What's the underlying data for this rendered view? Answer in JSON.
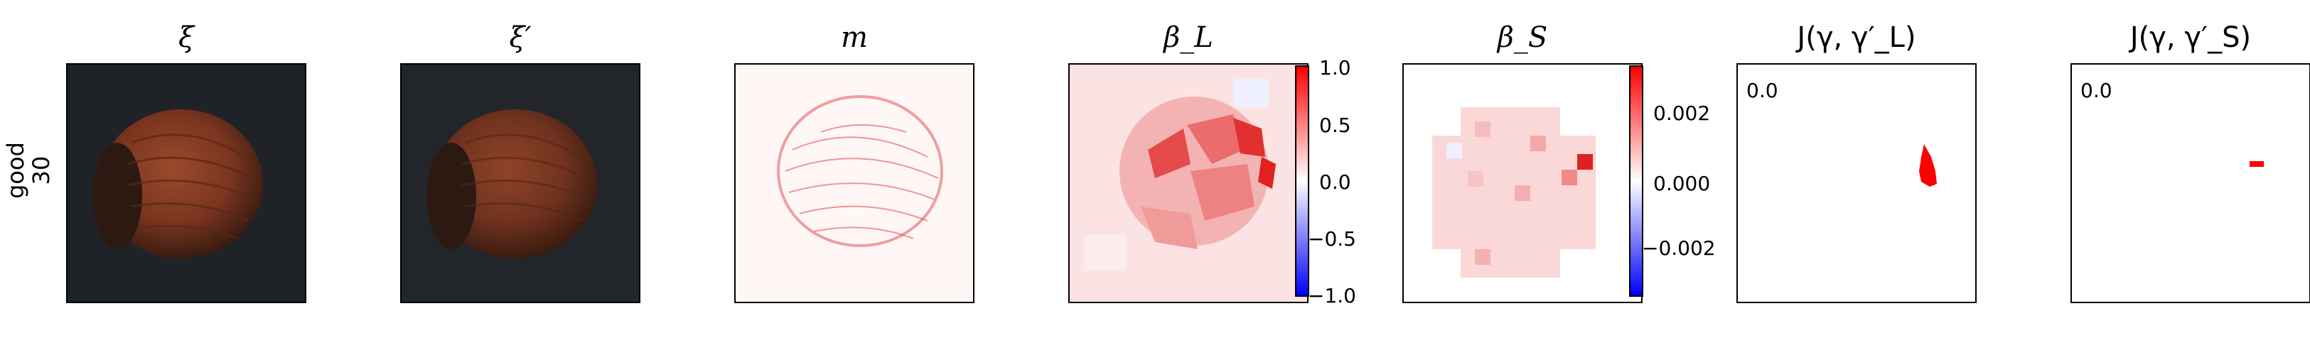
{
  "row": {
    "label_line1": "good",
    "label_line2": "30"
  },
  "panels": [
    {
      "title": "ξ"
    },
    {
      "title": "ξ′"
    },
    {
      "title": "m"
    },
    {
      "title": "β_L",
      "colorbar": {
        "ticks": [
          "1.0",
          "0.5",
          "0.0",
          "−0.5",
          "−1.0"
        ]
      }
    },
    {
      "title": "β_S",
      "colorbar": {
        "ticks": [
          "0.002",
          "0.000",
          "−0.002"
        ]
      }
    },
    {
      "title": "J(γ, γ′_L)",
      "value_label": "0.0"
    },
    {
      "title": "J(γ, γ′_S)",
      "value_label": "0.0"
    }
  ],
  "colors": {
    "positive": "#ff0000",
    "negative": "#0000ff",
    "neutral": "#ffffff",
    "image_bg": "#1e2226",
    "nut": "#7a3a22"
  }
}
